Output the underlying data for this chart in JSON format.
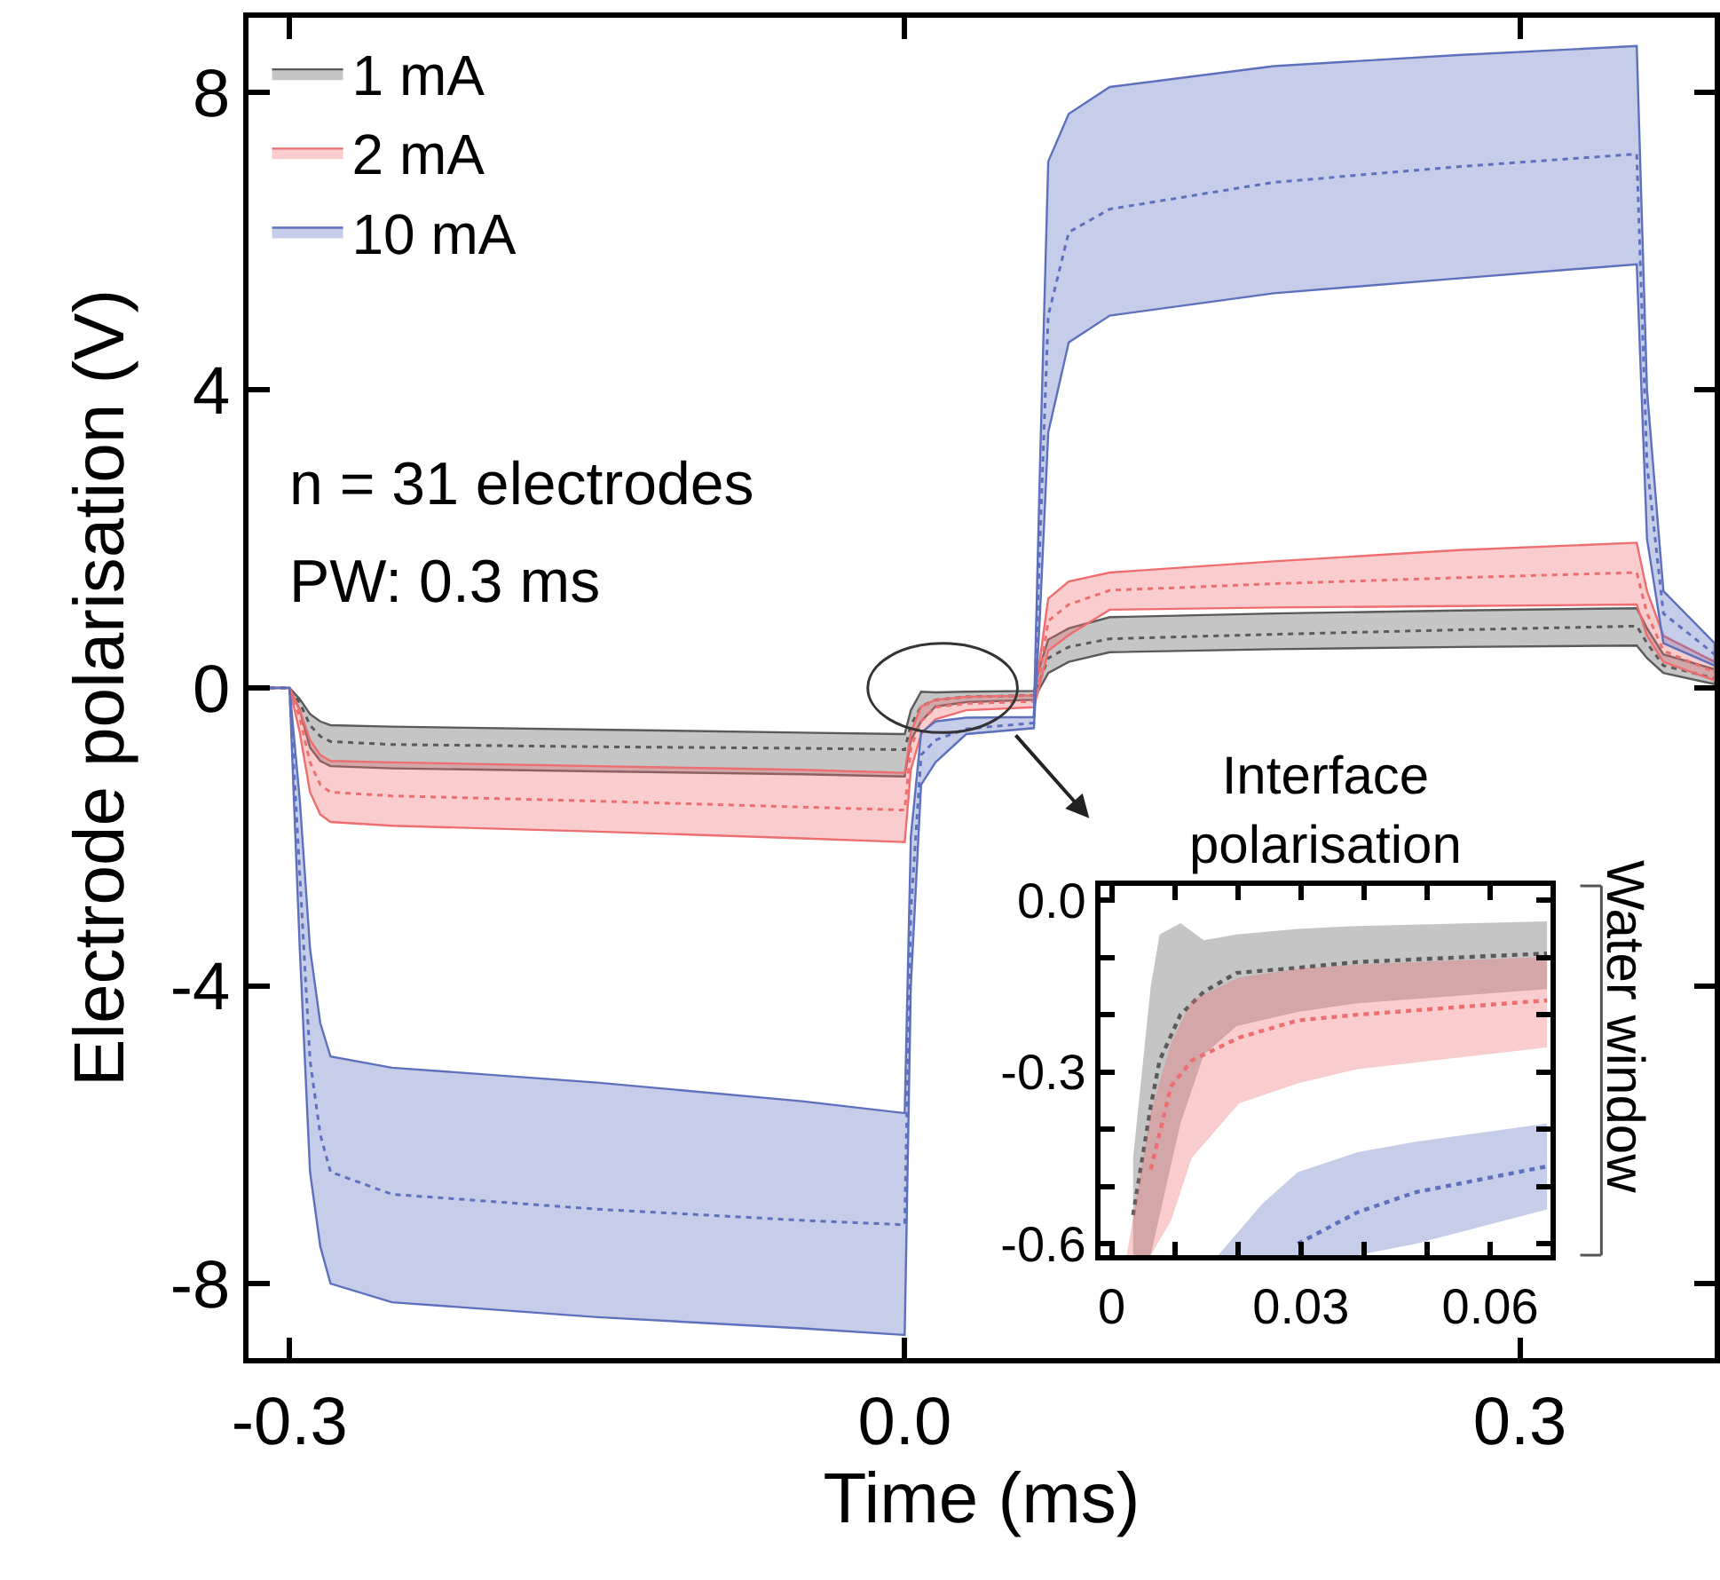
{
  "chart_data": [
    {
      "type": "line",
      "xlabel": "Time (ms)",
      "ylabel": "Electrode polarisation (V)",
      "xlim": [
        -0.32,
        0.395
      ],
      "xticks": [
        -0.3,
        {
          "value": 0.0,
          "label": "0.0"
        },
        0.3
      ],
      "ylim": [
        -9,
        9
      ],
      "yticks": [
        -8,
        -4,
        0,
        4,
        8
      ],
      "legend": "top left",
      "line_style": "dotted",
      "annotations": [
        "n = 31 electrodes",
        "PW: 0.3 ms"
      ],
      "series": [
        {
          "name": "1 mA",
          "color": "#5a5a5a",
          "x": [
            -0.32,
            -0.3,
            -0.295,
            -0.29,
            -0.285,
            -0.28,
            -0.25,
            -0.15,
            -0.05,
            0.0,
            0.003,
            0.008,
            0.015,
            0.03,
            0.063,
            0.066,
            0.07,
            0.08,
            0.1,
            0.18,
            0.27,
            0.357,
            0.362,
            0.37,
            0.395
          ],
          "values": [
            0,
            0,
            -0.2,
            -0.5,
            -0.65,
            -0.72,
            -0.76,
            -0.79,
            -0.81,
            -0.83,
            -0.5,
            -0.25,
            -0.16,
            -0.12,
            -0.1,
            0.1,
            0.4,
            0.55,
            0.66,
            0.72,
            0.78,
            0.83,
            0.6,
            0.3,
            0.13
          ],
          "lower": [
            0,
            0,
            -0.3,
            -0.8,
            -0.98,
            -1.05,
            -1.08,
            -1.12,
            -1.16,
            -1.19,
            -0.7,
            -0.45,
            -0.25,
            -0.19,
            -0.16,
            0.0,
            0.2,
            0.35,
            0.48,
            0.52,
            0.55,
            0.57,
            0.4,
            0.2,
            0.05
          ],
          "upper": [
            0,
            0,
            -0.15,
            -0.35,
            -0.45,
            -0.5,
            -0.52,
            -0.56,
            -0.6,
            -0.62,
            -0.3,
            -0.05,
            -0.06,
            -0.05,
            -0.04,
            0.3,
            0.65,
            0.8,
            0.95,
            1.0,
            1.04,
            1.07,
            0.8,
            0.45,
            0.25
          ]
        },
        {
          "name": "2 mA",
          "color": "#ee6e70",
          "x": [
            -0.32,
            -0.3,
            -0.295,
            -0.29,
            -0.285,
            -0.28,
            -0.25,
            -0.15,
            -0.05,
            0.0,
            0.003,
            0.008,
            0.015,
            0.03,
            0.063,
            0.066,
            0.07,
            0.08,
            0.1,
            0.18,
            0.27,
            0.357,
            0.362,
            0.37,
            0.395
          ],
          "values": [
            0,
            0,
            -0.4,
            -1.0,
            -1.3,
            -1.4,
            -1.45,
            -1.52,
            -1.6,
            -1.64,
            -0.8,
            -0.45,
            -0.26,
            -0.21,
            -0.18,
            0.2,
            0.9,
            1.12,
            1.31,
            1.4,
            1.48,
            1.55,
            1.0,
            0.5,
            0.21
          ],
          "lower": [
            0,
            0,
            -0.6,
            -1.4,
            -1.7,
            -1.8,
            -1.85,
            -1.93,
            -2.02,
            -2.07,
            -1.1,
            -0.62,
            -0.42,
            -0.3,
            -0.26,
            0.05,
            0.5,
            0.71,
            1.05,
            1.08,
            1.1,
            1.12,
            0.7,
            0.35,
            0.1
          ],
          "upper": [
            0,
            0,
            -0.3,
            -0.7,
            -0.9,
            -0.98,
            -1.0,
            -1.05,
            -1.1,
            -1.14,
            -0.6,
            -0.25,
            -0.16,
            -0.12,
            -0.1,
            0.4,
            1.2,
            1.43,
            1.55,
            1.7,
            1.85,
            1.95,
            1.3,
            0.7,
            0.35
          ]
        },
        {
          "name": "10 mA",
          "color": "#5d70bd",
          "x": [
            -0.32,
            -0.3,
            -0.295,
            -0.29,
            -0.285,
            -0.28,
            -0.25,
            -0.15,
            -0.05,
            0.0,
            0.003,
            0.008,
            0.015,
            0.03,
            0.063,
            0.066,
            0.07,
            0.08,
            0.1,
            0.18,
            0.27,
            0.357,
            0.362,
            0.37,
            0.395
          ],
          "values": [
            0,
            0,
            -2.5,
            -5.0,
            -6.0,
            -6.5,
            -6.8,
            -7.0,
            -7.15,
            -7.21,
            -3.0,
            -0.9,
            -0.7,
            -0.55,
            -0.47,
            2.0,
            5.0,
            6.12,
            6.43,
            6.79,
            7.0,
            7.17,
            3.0,
            1.0,
            0.45
          ],
          "lower": [
            0,
            0,
            -3.5,
            -6.5,
            -7.5,
            -8.0,
            -8.25,
            -8.45,
            -8.6,
            -8.69,
            -4.0,
            -1.3,
            -1.0,
            -0.62,
            -0.54,
            1.0,
            3.43,
            4.64,
            5.0,
            5.3,
            5.5,
            5.69,
            2.0,
            0.6,
            0.3
          ],
          "upper": [
            0,
            0,
            -1.5,
            -3.5,
            -4.5,
            -4.95,
            -5.1,
            -5.3,
            -5.55,
            -5.71,
            -2.0,
            -0.6,
            -0.45,
            -0.4,
            -0.39,
            3.0,
            7.07,
            7.71,
            8.07,
            8.35,
            8.5,
            8.62,
            4.0,
            1.3,
            0.6
          ]
        }
      ]
    },
    {
      "type": "line",
      "title": "Interface polarisation",
      "xlim": [
        -0.0017,
        0.0695
      ],
      "xticks": [
        0,
        {
          "value": 0.01,
          "label": null
        },
        {
          "value": 0.02,
          "label": null
        },
        0.03,
        {
          "value": 0.04,
          "label": null
        },
        {
          "value": 0.05,
          "label": null
        },
        0.06
      ],
      "ylim": [
        -0.62,
        0.025
      ],
      "yticks": [
        {
          "value": 0.0,
          "label": "0.0"
        },
        {
          "value": -0.1,
          "label": null
        },
        {
          "value": -0.2,
          "label": null
        },
        -0.3,
        {
          "value": -0.4,
          "label": null
        },
        {
          "value": -0.5,
          "label": null
        },
        -0.6
      ],
      "line_style": "dotted",
      "annotations": [
        "Water window"
      ],
      "series": [
        {
          "color": "#5a5a5a",
          "x": [
            0.0034,
            0.0062,
            0.0076,
            0.0109,
            0.0146,
            0.0198,
            0.0295,
            0.039,
            0.069
          ],
          "values": [
            -0.55,
            -0.36,
            -0.28,
            -0.2,
            -0.16,
            -0.127,
            -0.118,
            -0.108,
            -0.093
          ],
          "lower": [
            -0.62,
            -0.62,
            -0.55,
            -0.39,
            -0.27,
            -0.22,
            -0.195,
            -0.18,
            -0.155
          ],
          "upper": [
            -0.45,
            -0.15,
            -0.06,
            -0.04,
            -0.07,
            -0.06,
            -0.05,
            -0.045,
            -0.037
          ]
        },
        {
          "color": "#ee6e70",
          "x": [
            0.0024,
            0.0062,
            0.0094,
            0.0127,
            0.0202,
            0.0295,
            0.039,
            0.069
          ],
          "values": [
            null,
            -0.47,
            -0.325,
            -0.28,
            -0.24,
            -0.21,
            -0.2,
            -0.175
          ],
          "lower": [
            -0.62,
            -0.62,
            -0.56,
            -0.45,
            -0.355,
            -0.32,
            -0.295,
            -0.257
          ],
          "upper": [
            -0.62,
            -0.37,
            -0.25,
            -0.175,
            -0.135,
            -0.12,
            -0.112,
            -0.099
          ]
        },
        {
          "color": "#5d70bd",
          "x": [
            0.0169,
            0.0239,
            0.0295,
            0.039,
            0.0482,
            0.069
          ],
          "values": [
            null,
            null,
            -0.6,
            -0.545,
            -0.51,
            -0.465
          ],
          "lower": [
            -0.62,
            -0.62,
            -0.62,
            -0.62,
            -0.6,
            -0.54
          ],
          "upper": [
            -0.62,
            -0.53,
            -0.475,
            -0.44,
            -0.422,
            -0.39
          ]
        }
      ]
    }
  ]
}
